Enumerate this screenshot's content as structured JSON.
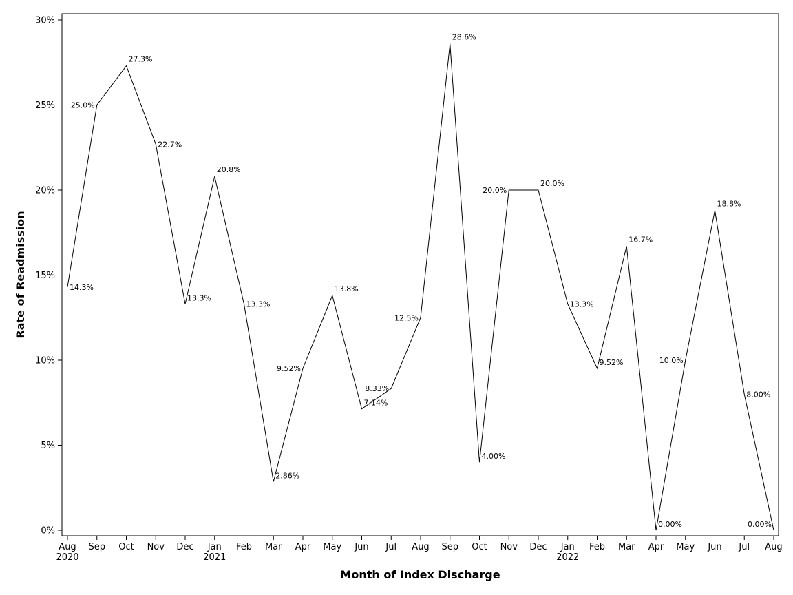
{
  "chart_data": {
    "type": "line",
    "xlabel": "Month of Index Discharge",
    "ylabel": "Rate of Readmission",
    "ylim": [
      0,
      30
    ],
    "yticks": [
      {
        "value": 0,
        "label": "0%"
      },
      {
        "value": 5,
        "label": "5%"
      },
      {
        "value": 10,
        "label": "10%"
      },
      {
        "value": 15,
        "label": "15%"
      },
      {
        "value": 20,
        "label": "20%"
      },
      {
        "value": 25,
        "label": "25%"
      },
      {
        "value": 30,
        "label": "30%"
      }
    ],
    "categories": [
      "Aug",
      "Sep",
      "Oct",
      "Nov",
      "Dec",
      "Jan",
      "Feb",
      "Mar",
      "Apr",
      "May",
      "Jun",
      "Jul",
      "Aug",
      "Sep",
      "Oct",
      "Nov",
      "Dec",
      "Jan",
      "Feb",
      "Mar",
      "Apr",
      "May",
      "Jun",
      "Jul",
      "Aug"
    ],
    "year_labels": [
      "2020",
      "",
      "",
      "",
      "",
      "2021",
      "",
      "",
      "",
      "",
      "",
      "",
      "",
      "",
      "",
      "",
      "",
      "2022",
      "",
      "",
      "",
      "",
      "",
      "",
      ""
    ],
    "values": [
      14.3,
      25.0,
      27.3,
      22.7,
      13.3,
      20.8,
      13.3,
      2.86,
      9.52,
      13.8,
      7.14,
      8.33,
      12.5,
      28.6,
      4.0,
      20.0,
      20.0,
      13.3,
      9.52,
      16.7,
      0.0,
      10.0,
      18.8,
      8.0,
      0.0
    ],
    "value_labels": [
      "14.3%",
      "25.0%",
      "27.3%",
      "22.7%",
      "13.3%",
      "20.8%",
      "13.3%",
      "2.86%",
      "9.52%",
      "13.8%",
      "7.14%",
      "8.33%",
      "12.5%",
      "28.6%",
      "4.00%",
      "20.0%",
      "20.0%",
      "13.3%",
      "9.52%",
      "16.7%",
      "0.00%",
      "10.0%",
      "18.8%",
      "8.00%",
      "0.00%"
    ],
    "grid": false,
    "line_color": "#000000"
  }
}
